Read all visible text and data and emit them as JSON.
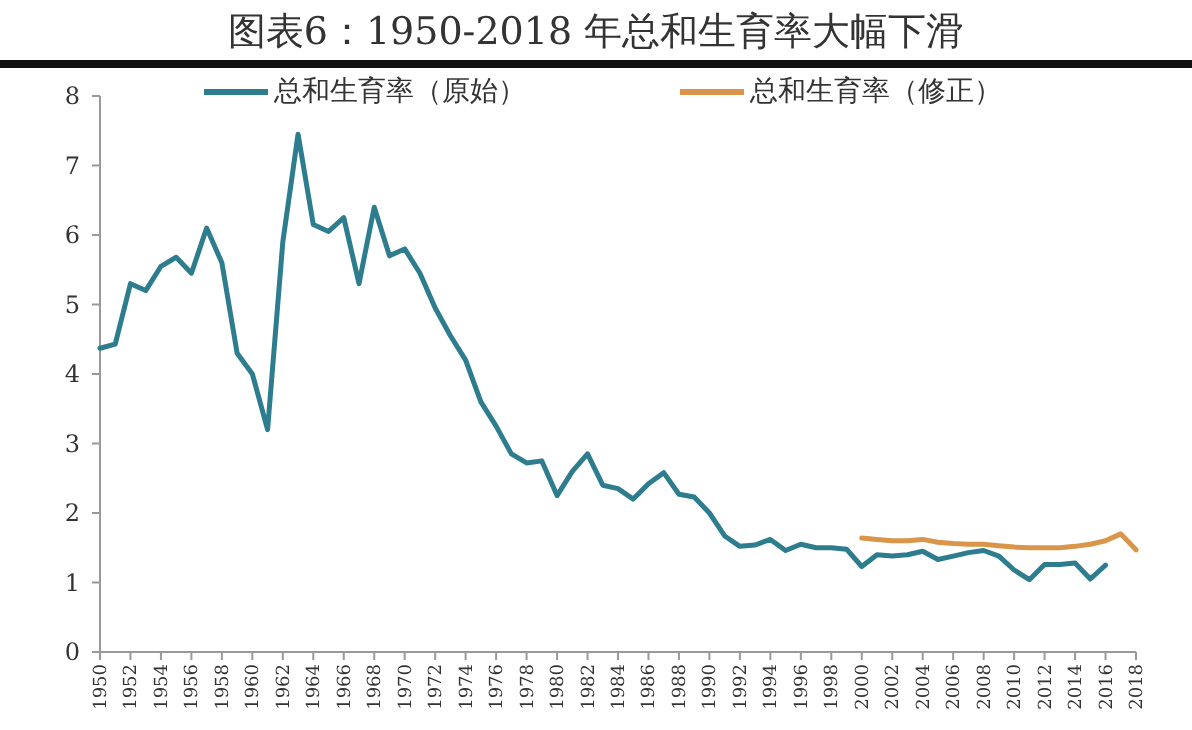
{
  "chart_data": {
    "type": "line",
    "title": "图表6：1950-2018 年总和生育率大幅下滑",
    "x": [
      1950,
      1951,
      1952,
      1953,
      1954,
      1955,
      1956,
      1957,
      1958,
      1959,
      1960,
      1961,
      1962,
      1963,
      1964,
      1965,
      1966,
      1967,
      1968,
      1969,
      1970,
      1971,
      1972,
      1973,
      1974,
      1975,
      1976,
      1977,
      1978,
      1979,
      1980,
      1981,
      1982,
      1983,
      1984,
      1985,
      1986,
      1987,
      1988,
      1989,
      1990,
      1991,
      1992,
      1993,
      1994,
      1995,
      1996,
      1997,
      1998,
      1999,
      2000,
      2001,
      2002,
      2003,
      2004,
      2005,
      2006,
      2007,
      2008,
      2009,
      2010,
      2011,
      2012,
      2013,
      2014,
      2015,
      2016,
      2017,
      2018
    ],
    "series": [
      {
        "name": "总和生育率（原始）",
        "color": "#2e7d8f",
        "values": [
          4.37,
          4.43,
          5.3,
          5.2,
          5.55,
          5.68,
          5.45,
          6.1,
          5.6,
          4.3,
          4.0,
          3.2,
          5.9,
          7.45,
          6.15,
          6.05,
          6.25,
          5.3,
          6.4,
          5.7,
          5.8,
          5.45,
          4.95,
          4.55,
          4.2,
          3.6,
          3.25,
          2.85,
          2.72,
          2.75,
          2.25,
          2.6,
          2.85,
          2.4,
          2.35,
          2.2,
          2.42,
          2.58,
          2.27,
          2.23,
          2.0,
          1.67,
          1.52,
          1.54,
          1.62,
          1.46,
          1.55,
          1.5,
          1.5,
          1.48,
          1.23,
          1.4,
          1.38,
          1.4,
          1.45,
          1.33,
          1.38,
          1.43,
          1.46,
          1.38,
          1.18,
          1.04,
          1.26,
          1.26,
          1.28,
          1.05,
          1.25,
          null,
          null
        ]
      },
      {
        "name": "总和生育率（修正）",
        "color": "#d9954a",
        "values": [
          null,
          null,
          null,
          null,
          null,
          null,
          null,
          null,
          null,
          null,
          null,
          null,
          null,
          null,
          null,
          null,
          null,
          null,
          null,
          null,
          null,
          null,
          null,
          null,
          null,
          null,
          null,
          null,
          null,
          null,
          null,
          null,
          null,
          null,
          null,
          null,
          null,
          null,
          null,
          null,
          null,
          null,
          null,
          null,
          null,
          null,
          null,
          null,
          null,
          null,
          1.64,
          1.62,
          1.6,
          1.6,
          1.62,
          1.58,
          1.56,
          1.55,
          1.55,
          1.53,
          1.51,
          1.5,
          1.5,
          1.5,
          1.52,
          1.55,
          1.6,
          1.7,
          1.47
        ]
      }
    ],
    "xlim": [
      1950,
      2018
    ],
    "xticks": [
      1950,
      1952,
      1954,
      1956,
      1958,
      1960,
      1962,
      1964,
      1966,
      1968,
      1970,
      1972,
      1974,
      1976,
      1978,
      1980,
      1982,
      1984,
      1986,
      1988,
      1990,
      1992,
      1994,
      1996,
      1998,
      2000,
      2002,
      2004,
      2006,
      2008,
      2010,
      2012,
      2014,
      2016,
      2018
    ],
    "ylim": [
      0,
      8
    ],
    "yticks": [
      0,
      1,
      2,
      3,
      4,
      5,
      6,
      7,
      8
    ],
    "legend": "top",
    "grid": false
  }
}
